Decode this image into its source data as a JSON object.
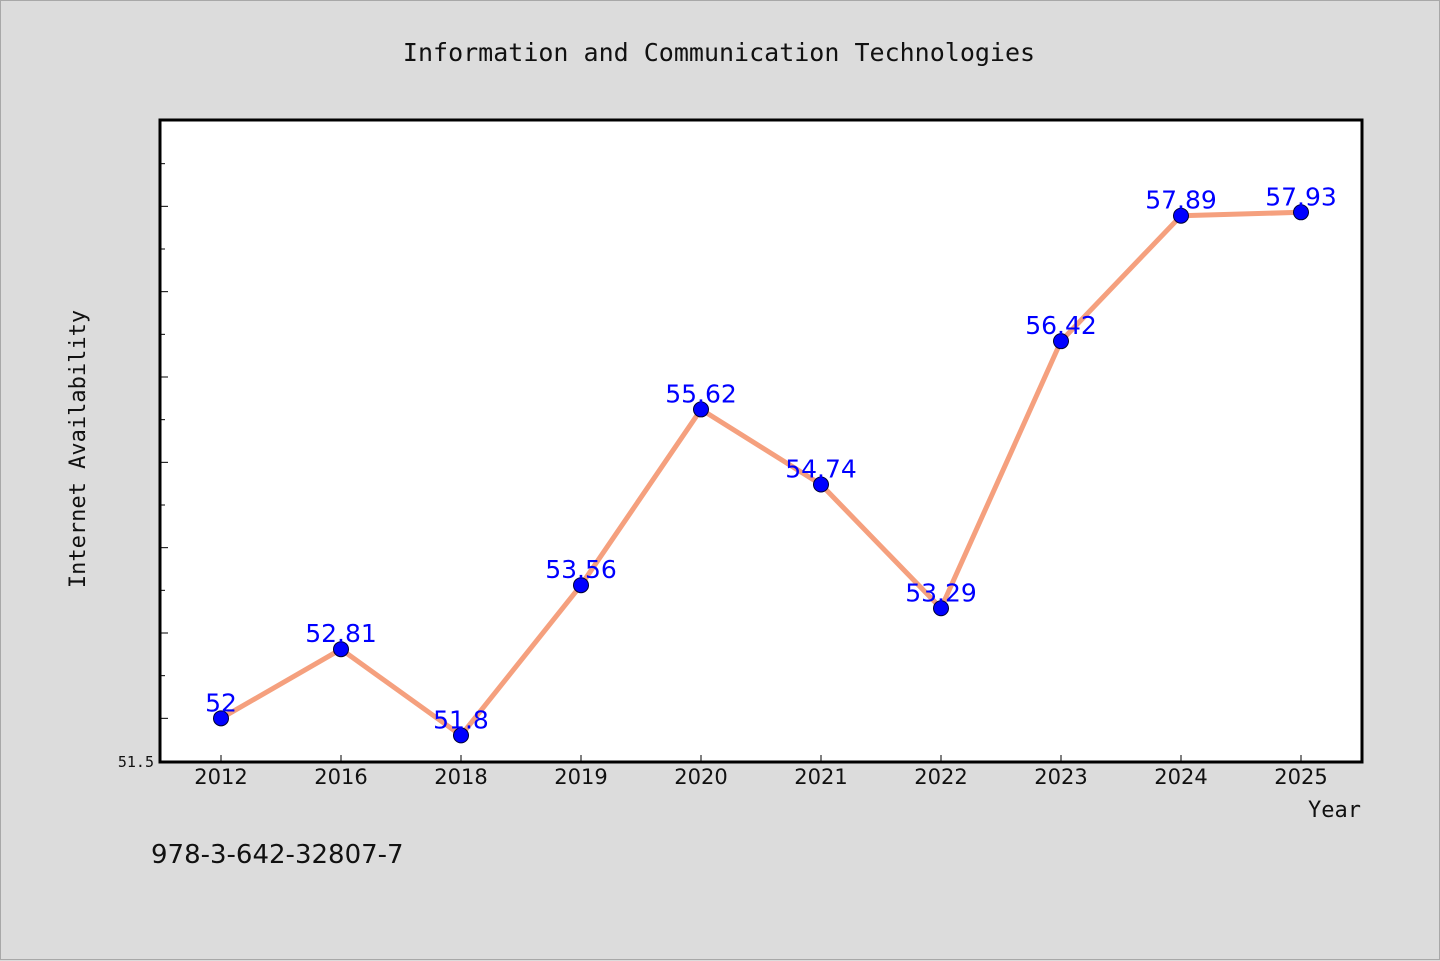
{
  "footer": {
    "code": "978-3-642-32807-7"
  },
  "colors": {
    "background": "#dcdcdc",
    "plot_background": "#ffffff",
    "line": "#f5a07e",
    "marker": "#0000ff",
    "label": "#0000ff"
  },
  "chart_data": {
    "type": "line",
    "title": "Information and Communication Technologies",
    "xlabel": "Year",
    "ylabel": "Internet Availability",
    "categories": [
      "2012",
      "2016",
      "2018",
      "2019",
      "2020",
      "2021",
      "2022",
      "2023",
      "2024",
      "2025"
    ],
    "values": [
      52,
      52.81,
      51.8,
      53.56,
      55.62,
      54.74,
      53.29,
      56.42,
      57.89,
      57.93
    ],
    "data_labels": [
      "52",
      "52.81",
      "51.8",
      "53.56",
      "55.62",
      "54.74",
      "53.29",
      "56.42",
      "57.89",
      "57.93"
    ],
    "ylim": [
      51.5,
      59.0
    ],
    "y_tick_labels": [
      "51.5"
    ],
    "grid": false,
    "legend": "none"
  }
}
